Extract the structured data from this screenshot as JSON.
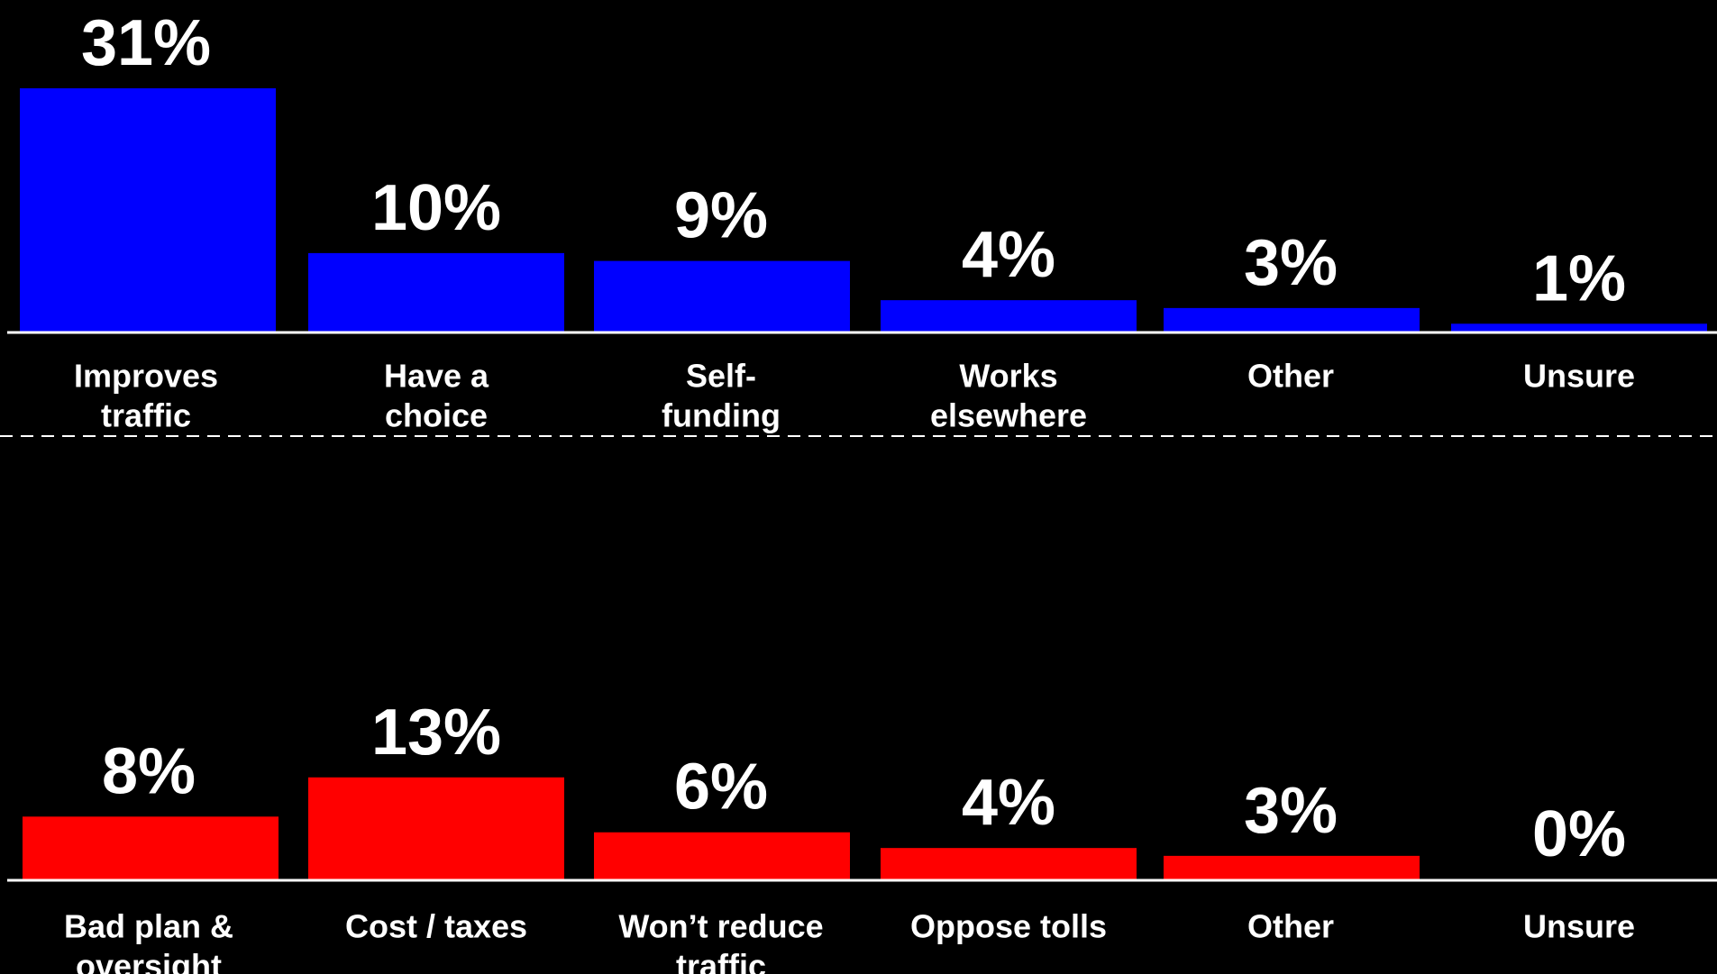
{
  "chart_data": [
    {
      "type": "bar",
      "categories": [
        [
          "Improves",
          "traffic"
        ],
        [
          "Have a",
          "choice"
        ],
        [
          "Self-",
          "funding"
        ],
        [
          "Works",
          "elsewhere"
        ],
        [
          "Other"
        ],
        [
          "Unsure"
        ]
      ],
      "values": [
        31,
        10,
        9,
        4,
        3,
        1
      ],
      "value_labels": [
        "31%",
        "10%",
        "9%",
        "4%",
        "3%",
        "1%"
      ],
      "unit": "%",
      "color": "#0000ff",
      "title": "",
      "xlabel": "",
      "ylabel": ""
    },
    {
      "type": "bar",
      "categories": [
        [
          "Bad plan &",
          "oversight"
        ],
        [
          "Cost / taxes"
        ],
        [
          "Won’t reduce",
          "traffic"
        ],
        [
          "Oppose tolls"
        ],
        [
          "Other"
        ],
        [
          "Unsure"
        ]
      ],
      "values": [
        8,
        13,
        6,
        4,
        3,
        0
      ],
      "value_labels": [
        "8%",
        "13%",
        "6%",
        "4%",
        "3%",
        "0%"
      ],
      "unit": "%",
      "color": "#ff0000",
      "title": "",
      "xlabel": "",
      "ylabel": ""
    }
  ],
  "style": {
    "background": "#000000",
    "text_color": "#ffffff",
    "axis_color": "#ffffff",
    "separator": "dashed"
  }
}
